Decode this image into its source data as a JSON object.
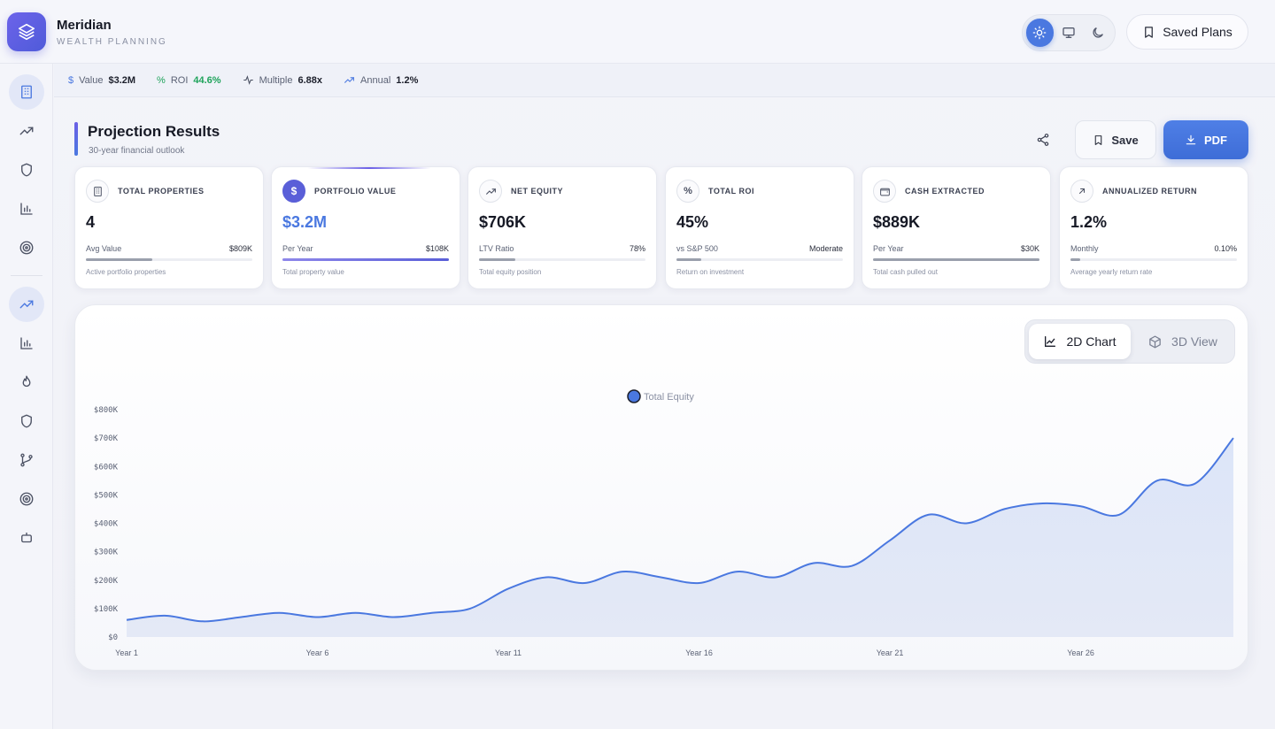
{
  "brand": {
    "name": "Meridian",
    "subtitle": "WEALTH PLANNING"
  },
  "header": {
    "saved_plans_label": "Saved Plans",
    "theme_modes": [
      "light-icon",
      "monitor-icon",
      "moon-icon"
    ],
    "active_theme": "light"
  },
  "stats": [
    {
      "icon": "dollar-icon",
      "label": "Value",
      "value": "$3.2M"
    },
    {
      "icon": "percent-icon",
      "label": "ROI",
      "value": "44.6%"
    },
    {
      "icon": "activity-icon",
      "label": "Multiple",
      "value": "6.88x"
    },
    {
      "icon": "trending-up-icon",
      "label": "Annual",
      "value": "1.2%"
    }
  ],
  "projection": {
    "title": "Projection Results",
    "subtitle": "30-year financial outlook",
    "save_label": "Save",
    "pdf_label": "PDF"
  },
  "cards": [
    {
      "icon": "building-icon",
      "label": "TOTAL PROPERTIES",
      "value": "4",
      "sub_label": "Avg Value",
      "sub_value": "$809K",
      "progress": 0.4,
      "desc": "Active portfolio properties"
    },
    {
      "icon": "dollar-icon",
      "label": "PORTFOLIO VALUE",
      "value": "$3.2M",
      "sub_label": "Per Year",
      "sub_value": "$108K",
      "progress": 1.0,
      "desc": "Total property value"
    },
    {
      "icon": "trending-up-icon",
      "label": "NET EQUITY",
      "value": "$706K",
      "sub_label": "LTV Ratio",
      "sub_value": "78%",
      "progress": 0.22,
      "desc": "Total equity position"
    },
    {
      "icon": "percent-icon",
      "label": "TOTAL ROI",
      "value": "45%",
      "sub_label": "vs S&P 500",
      "sub_value": "Moderate",
      "progress": 0.15,
      "desc": "Return on investment"
    },
    {
      "icon": "wallet-icon",
      "label": "CASH EXTRACTED",
      "value": "$889K",
      "sub_label": "Per Year",
      "sub_value": "$30K",
      "progress": 1.0,
      "desc": "Total cash pulled out"
    },
    {
      "icon": "arrow-up-right-icon",
      "label": "ANNUALIZED RETURN",
      "value": "1.2%",
      "sub_label": "Monthly",
      "sub_value": "0.10%",
      "progress": 0.06,
      "desc": "Average yearly return rate"
    }
  ],
  "view_toggle": {
    "chart_label": "2D Chart",
    "view3d_label": "3D View",
    "active": "2D Chart"
  },
  "chart_data": {
    "type": "area",
    "title": "",
    "xlabel": "",
    "ylabel": "",
    "series": [
      {
        "name": "Total Equity",
        "color": "#4a78e0",
        "x": [
          1,
          2,
          3,
          4,
          5,
          6,
          7,
          8,
          9,
          10,
          11,
          12,
          13,
          14,
          15,
          16,
          17,
          18,
          19,
          20,
          21,
          22,
          23,
          24,
          25,
          26,
          27,
          28,
          29,
          30
        ],
        "values": [
          60,
          75,
          55,
          70,
          85,
          70,
          85,
          70,
          85,
          100,
          170,
          210,
          190,
          230,
          210,
          190,
          230,
          210,
          260,
          250,
          340,
          430,
          400,
          450,
          470,
          460,
          430,
          550,
          540,
          700
        ]
      }
    ],
    "x_tick_labels": [
      "Year 1",
      "Year 6",
      "Year 11",
      "Year 16",
      "Year 21",
      "Year 26"
    ],
    "x_ticks": [
      1,
      6,
      11,
      16,
      21,
      26
    ],
    "y_tick_labels": [
      "$0",
      "$100K",
      "$200K",
      "$300K",
      "$400K",
      "$500K",
      "$600K",
      "$700K",
      "$800K"
    ],
    "y_ticks": [
      0,
      100,
      200,
      300,
      400,
      500,
      600,
      700,
      800
    ],
    "ylim": [
      0,
      800
    ],
    "xlim": [
      1,
      30
    ],
    "grid": false,
    "legend": "top-center"
  }
}
